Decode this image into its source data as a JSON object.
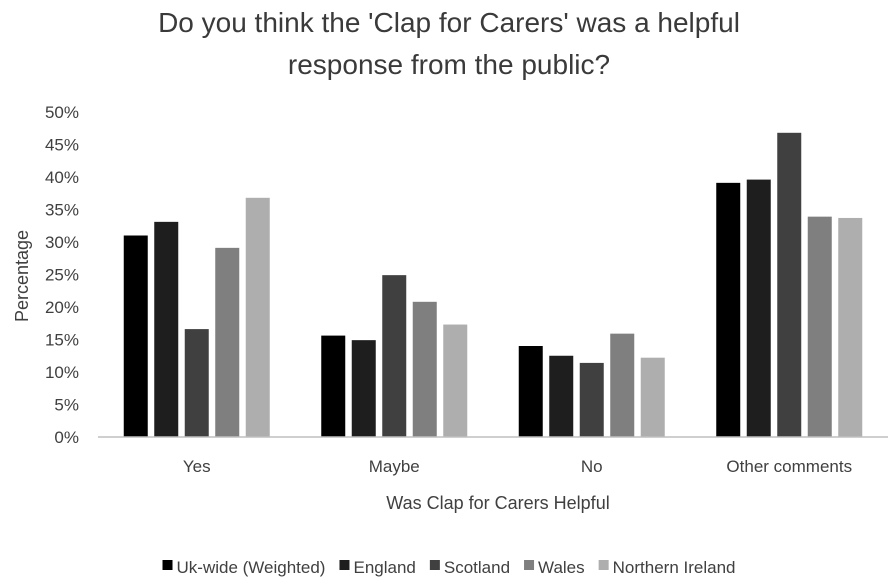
{
  "chart_data": {
    "type": "bar",
    "title_lines": [
      "Do you think the 'Clap for Carers' was a helpful",
      "response from the public?"
    ],
    "xlabel": "Was Clap for Carers Helpful",
    "ylabel": "Percentage",
    "categories": [
      "Yes",
      "Maybe",
      "No",
      "Other comments"
    ],
    "y_ticks": [
      "0%",
      "5%",
      "10%",
      "15%",
      "20%",
      "25%",
      "30%",
      "35%",
      "40%",
      "45%",
      "50%"
    ],
    "ylim": [
      0,
      50
    ],
    "grid": false,
    "legend_position": "bottom",
    "series": [
      {
        "name": "Uk-wide (Weighted)",
        "color": "#000000",
        "values": [
          31.0,
          15.6,
          14.0,
          39.1
        ]
      },
      {
        "name": "England",
        "color": "#1e1e1e",
        "values": [
          33.1,
          14.9,
          12.5,
          39.6
        ]
      },
      {
        "name": "Scotland",
        "color": "#404040",
        "values": [
          16.6,
          24.9,
          11.4,
          46.8
        ]
      },
      {
        "name": "Wales",
        "color": "#7f7f7f",
        "values": [
          29.1,
          20.8,
          15.9,
          33.9
        ]
      },
      {
        "name": "Northern Ireland",
        "color": "#aeaeae",
        "values": [
          36.8,
          17.3,
          12.2,
          33.7
        ]
      }
    ]
  }
}
